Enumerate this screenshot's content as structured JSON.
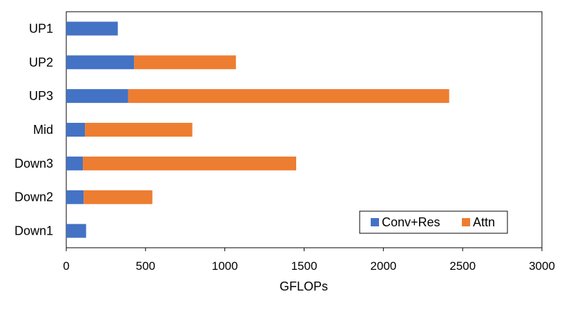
{
  "chart_data": {
    "type": "bar",
    "orientation": "horizontal",
    "stacked": true,
    "categories": [
      "UP1",
      "UP2",
      "UP3",
      "Mid",
      "Down3",
      "Down2",
      "Down1"
    ],
    "series": [
      {
        "name": "Conv+Res",
        "color": "#4472C4",
        "values": [
          325,
          428,
          390,
          118,
          105,
          110,
          125
        ]
      },
      {
        "name": "Attn",
        "color": "#ED7D31",
        "values": [
          0,
          642,
          2025,
          677,
          1345,
          433,
          0
        ]
      }
    ],
    "xlabel": "GFLOPs",
    "ylabel": "",
    "title": "",
    "xlim": [
      0,
      3000
    ],
    "xticks": [
      0,
      500,
      1000,
      1500,
      2000,
      2500,
      3000
    ],
    "grid": false,
    "legend_position": "bottom-right"
  }
}
